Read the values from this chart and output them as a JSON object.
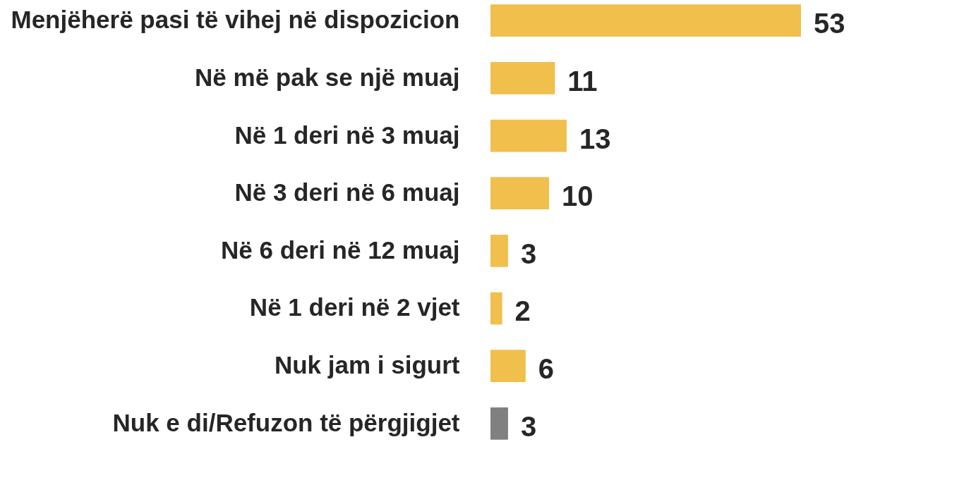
{
  "chart_data": {
    "type": "bar",
    "orientation": "horizontal",
    "data_labels": true,
    "categories": [
      "Menjëherë pasi të vihej në dispozicion",
      "Në më pak se një muaj",
      "Në 1 deri në 3 muaj",
      "Në 3 deri në 6 muaj",
      "Në 6 deri në 12 muaj",
      "Në 1 deri në 2 vjet",
      "Nuk jam i sigurt",
      "Nuk e di/Refuzon të përgjigjet"
    ],
    "values": [
      53,
      11,
      13,
      10,
      3,
      2,
      6,
      3
    ],
    "colors": [
      "#f0bf4c",
      "#f0bf4c",
      "#f0bf4c",
      "#f0bf4c",
      "#f0bf4c",
      "#f0bf4c",
      "#f0bf4c",
      "#808080"
    ],
    "grid": false,
    "legend": false
  }
}
